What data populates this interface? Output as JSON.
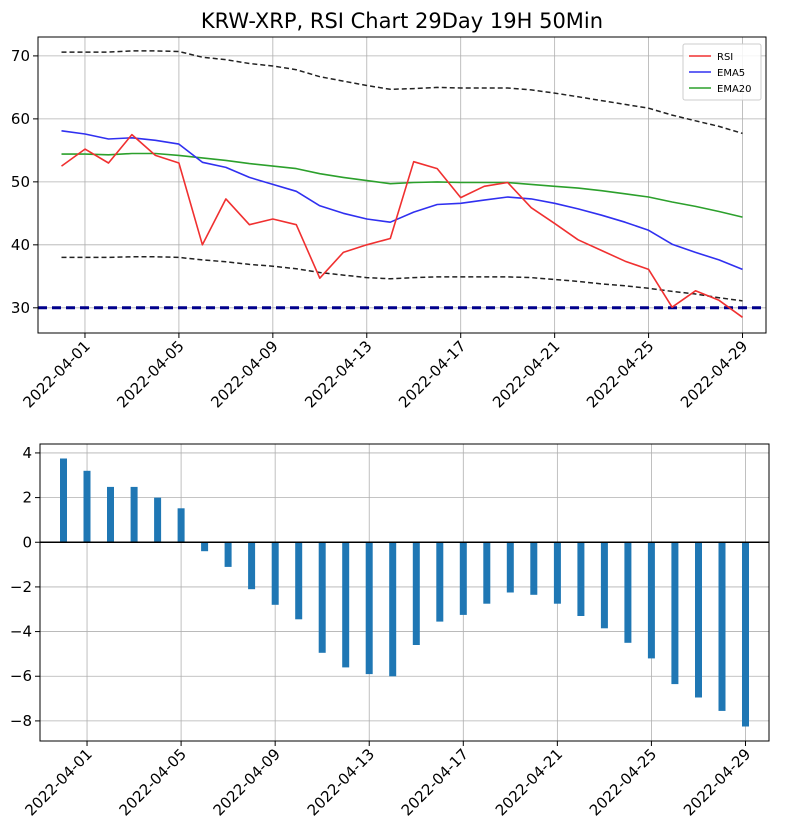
{
  "title": "KRW-XRP, RSI Chart 29Day 19H 50Min",
  "colors": {
    "rsi": "#f03030",
    "ema5": "#3030f0",
    "ema20": "#2ca02c",
    "band": "#222222",
    "threshold": "#00008b",
    "bar": "#1f77b4"
  },
  "chart_data": [
    {
      "type": "line",
      "name": "rsi-panel",
      "title": "KRW-XRP, RSI Chart 29Day 19H 50Min",
      "x_dates": [
        "2022-03-31",
        "2022-04-01",
        "2022-04-02",
        "2022-04-03",
        "2022-04-04",
        "2022-04-05",
        "2022-04-06",
        "2022-04-07",
        "2022-04-08",
        "2022-04-09",
        "2022-04-10",
        "2022-04-11",
        "2022-04-12",
        "2022-04-13",
        "2022-04-14",
        "2022-04-15",
        "2022-04-16",
        "2022-04-17",
        "2022-04-18",
        "2022-04-19",
        "2022-04-20",
        "2022-04-21",
        "2022-04-22",
        "2022-04-23",
        "2022-04-24",
        "2022-04-25",
        "2022-04-26",
        "2022-04-27",
        "2022-04-28",
        "2022-04-29"
      ],
      "x_ticks": [
        "2022-04-01",
        "2022-04-05",
        "2022-04-09",
        "2022-04-13",
        "2022-04-17",
        "2022-04-21",
        "2022-04-25",
        "2022-04-29"
      ],
      "xlim": [
        "2022-03-30",
        "2022-04-30"
      ],
      "ylim": [
        26,
        73
      ],
      "y_ticks": [
        30,
        40,
        50,
        60,
        70
      ],
      "grid": true,
      "legend": "top-right",
      "threshold": 30,
      "series": [
        {
          "name": "RSI",
          "color_key": "rsi",
          "values": [
            52.5,
            55.2,
            53.0,
            57.5,
            54.2,
            53.0,
            40.0,
            47.3,
            43.2,
            44.1,
            43.2,
            34.7,
            38.8,
            40.0,
            41.0,
            53.2,
            52.1,
            47.5,
            49.3,
            49.9,
            45.9,
            43.4,
            40.8,
            39.1,
            37.4,
            36.1,
            30.1,
            32.7,
            31.2,
            28.5
          ]
        },
        {
          "name": "EMA5",
          "color_key": "ema5",
          "values": [
            58.1,
            57.6,
            56.8,
            57.0,
            56.6,
            56.0,
            53.1,
            52.3,
            50.7,
            49.6,
            48.5,
            46.2,
            45.0,
            44.1,
            43.6,
            45.2,
            46.4,
            46.6,
            47.1,
            47.6,
            47.3,
            46.6,
            45.7,
            44.7,
            43.6,
            42.3,
            40.1,
            38.8,
            37.6,
            36.1
          ]
        },
        {
          "name": "EMA20",
          "color_key": "ema20",
          "values": [
            54.4,
            54.4,
            54.3,
            54.5,
            54.5,
            54.2,
            53.8,
            53.4,
            52.9,
            52.5,
            52.1,
            51.3,
            50.7,
            50.2,
            49.7,
            49.9,
            50.0,
            49.9,
            49.9,
            49.9,
            49.6,
            49.3,
            49.0,
            48.6,
            48.1,
            47.6,
            46.8,
            46.1,
            45.3,
            44.4
          ]
        },
        {
          "name": "",
          "color_key": "band",
          "dashed": true,
          "values": [
            70.6,
            70.6,
            70.6,
            70.8,
            70.8,
            70.7,
            69.8,
            69.4,
            68.8,
            68.4,
            67.8,
            66.7,
            66.0,
            65.3,
            64.7,
            64.8,
            65.0,
            64.9,
            64.9,
            64.9,
            64.6,
            64.1,
            63.5,
            62.9,
            62.3,
            61.7,
            60.6,
            59.7,
            58.8,
            57.7
          ]
        },
        {
          "name": "",
          "color_key": "band",
          "dashed": true,
          "values": [
            38.0,
            38.0,
            38.0,
            38.1,
            38.1,
            38.0,
            37.6,
            37.3,
            36.9,
            36.6,
            36.2,
            35.6,
            35.2,
            34.8,
            34.6,
            34.8,
            34.9,
            34.9,
            34.9,
            34.9,
            34.8,
            34.5,
            34.2,
            33.8,
            33.5,
            33.1,
            32.6,
            32.2,
            31.6,
            31.1
          ]
        }
      ]
    },
    {
      "type": "bar",
      "name": "diff-panel",
      "x_dates": [
        "2022-03-31",
        "2022-04-01",
        "2022-04-02",
        "2022-04-03",
        "2022-04-04",
        "2022-04-05",
        "2022-04-06",
        "2022-04-07",
        "2022-04-08",
        "2022-04-09",
        "2022-04-10",
        "2022-04-11",
        "2022-04-12",
        "2022-04-13",
        "2022-04-14",
        "2022-04-15",
        "2022-04-16",
        "2022-04-17",
        "2022-04-18",
        "2022-04-19",
        "2022-04-20",
        "2022-04-21",
        "2022-04-22",
        "2022-04-23",
        "2022-04-24",
        "2022-04-25",
        "2022-04-26",
        "2022-04-27",
        "2022-04-28",
        "2022-04-29"
      ],
      "x_ticks": [
        "2022-04-01",
        "2022-04-05",
        "2022-04-09",
        "2022-04-13",
        "2022-04-17",
        "2022-04-21",
        "2022-04-25",
        "2022-04-29"
      ],
      "xlim": [
        "2022-03-30",
        "2022-04-30"
      ],
      "ylim": [
        -8.9,
        4.4
      ],
      "y_ticks": [
        4,
        2,
        0,
        -2,
        -4,
        -6,
        -8
      ],
      "grid": true,
      "values": [
        3.75,
        3.2,
        2.48,
        2.48,
        2.0,
        1.52,
        -0.4,
        -1.1,
        -2.1,
        -2.8,
        -3.45,
        -4.95,
        -5.6,
        -5.9,
        -6.0,
        -4.6,
        -3.55,
        -3.25,
        -2.75,
        -2.25,
        -2.35,
        -2.75,
        -3.3,
        -3.85,
        -4.5,
        -5.2,
        -6.35,
        -6.95,
        -7.55,
        -8.25
      ]
    }
  ]
}
